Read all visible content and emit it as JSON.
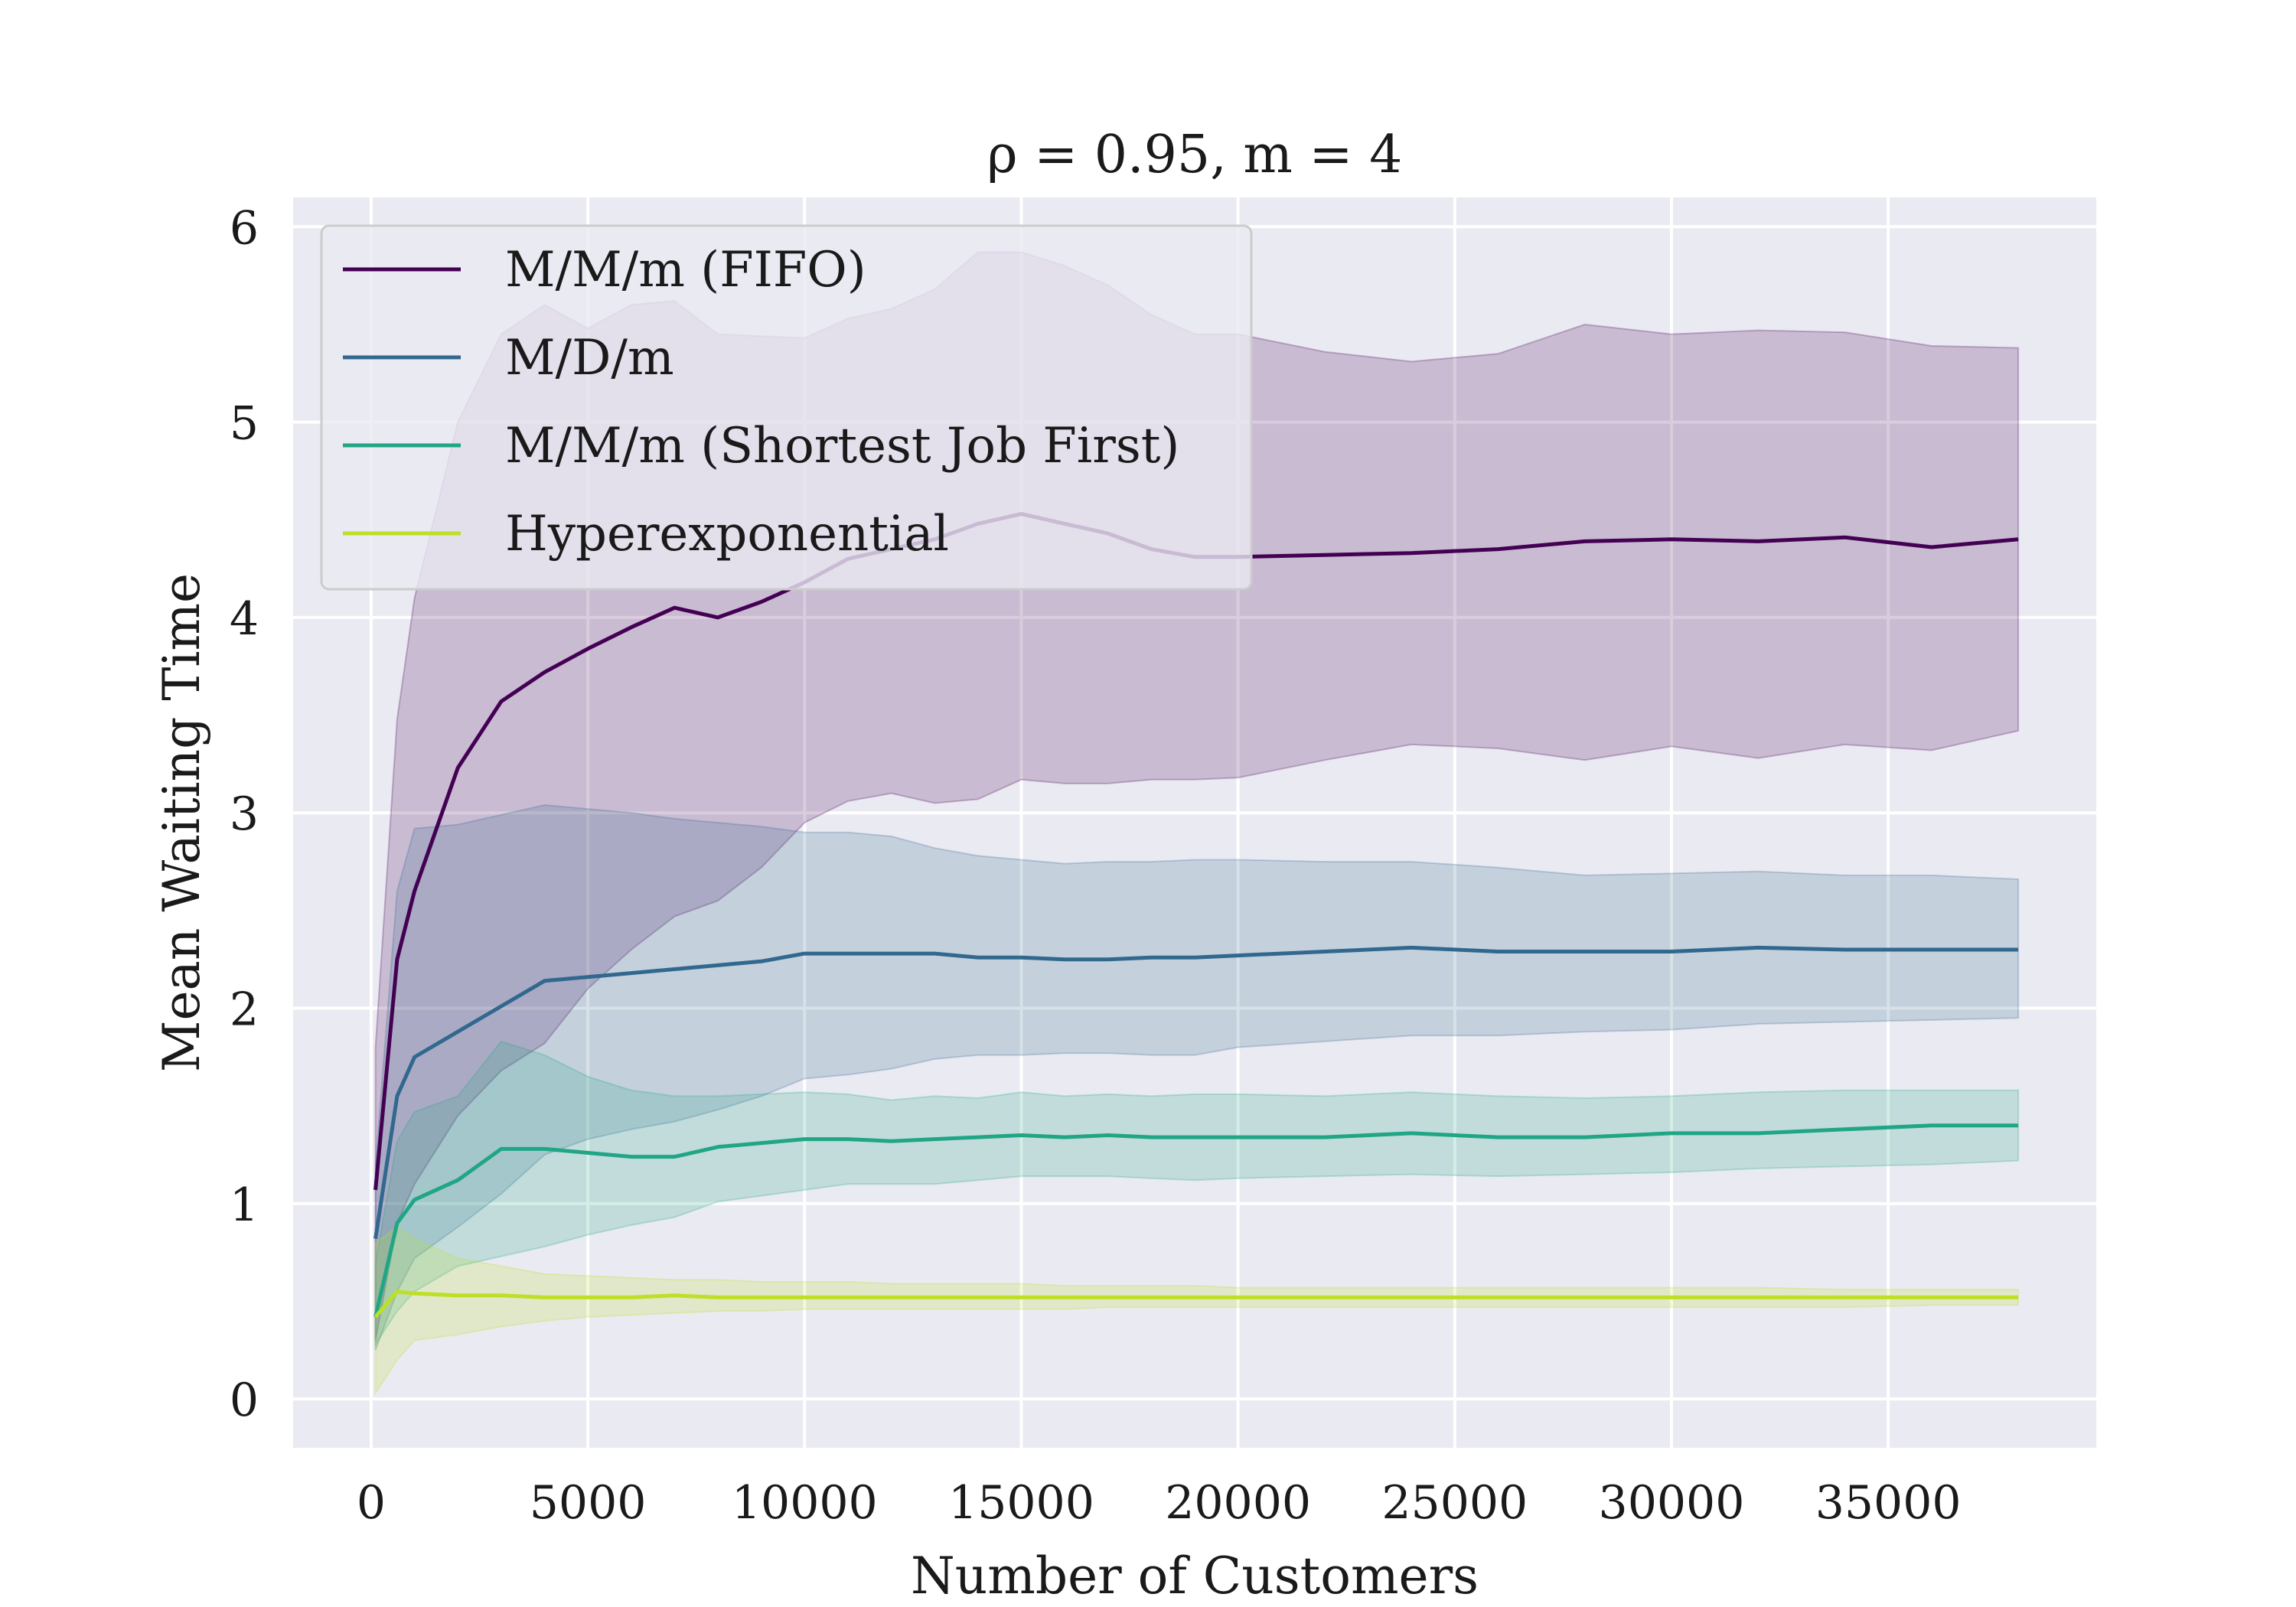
{
  "chart_data": {
    "type": "line",
    "title": "ρ = 0.95, m = 4",
    "xlabel": "Number of Customers",
    "ylabel": "Mean Waiting Time",
    "xlim": [
      -1800,
      39800
    ],
    "ylim": [
      -0.25,
      6.15
    ],
    "xticks": [
      0,
      5000,
      10000,
      15000,
      20000,
      25000,
      30000,
      35000
    ],
    "yticks": [
      0,
      1,
      2,
      3,
      4,
      5,
      6
    ],
    "grid": true,
    "legend_position": "top-left",
    "background_color": "#eaeaf2",
    "x": [
      100,
      600,
      1000,
      2000,
      3000,
      4000,
      5000,
      6000,
      7000,
      8000,
      9000,
      10000,
      11000,
      12000,
      13000,
      14000,
      15000,
      16000,
      17000,
      18000,
      19000,
      20000,
      22000,
      24000,
      26000,
      28000,
      30000,
      32000,
      34000,
      36000,
      38000
    ],
    "series": [
      {
        "name": "M/M/m (FIFO)",
        "color": "#440154",
        "values": [
          1.07,
          2.25,
          2.6,
          3.23,
          3.57,
          3.72,
          3.84,
          3.95,
          4.05,
          4.0,
          4.08,
          4.18,
          4.3,
          4.35,
          4.4,
          4.48,
          4.53,
          4.48,
          4.43,
          4.35,
          4.31,
          4.31,
          4.32,
          4.33,
          4.35,
          4.39,
          4.4,
          4.39,
          4.41,
          4.36,
          4.4
        ],
        "lower": [
          0.3,
          0.9,
          1.1,
          1.45,
          1.68,
          1.82,
          2.1,
          2.3,
          2.47,
          2.55,
          2.72,
          2.95,
          3.06,
          3.1,
          3.05,
          3.07,
          3.17,
          3.15,
          3.15,
          3.17,
          3.17,
          3.18,
          3.27,
          3.35,
          3.33,
          3.27,
          3.34,
          3.28,
          3.35,
          3.32,
          3.42
        ],
        "upper": [
          1.8,
          3.48,
          4.1,
          5.0,
          5.45,
          5.6,
          5.48,
          5.6,
          5.62,
          5.45,
          5.44,
          5.43,
          5.53,
          5.58,
          5.68,
          5.87,
          5.87,
          5.8,
          5.7,
          5.55,
          5.45,
          5.45,
          5.36,
          5.31,
          5.35,
          5.5,
          5.45,
          5.47,
          5.46,
          5.39,
          5.38
        ]
      },
      {
        "name": "M/D/m",
        "color": "#31688e",
        "values": [
          0.82,
          1.55,
          1.75,
          1.88,
          2.01,
          2.14,
          2.16,
          2.18,
          2.2,
          2.22,
          2.24,
          2.28,
          2.28,
          2.28,
          2.28,
          2.26,
          2.26,
          2.25,
          2.25,
          2.26,
          2.26,
          2.27,
          2.29,
          2.31,
          2.29,
          2.29,
          2.29,
          2.31,
          2.3,
          2.3,
          2.3
        ],
        "lower": [
          0.25,
          0.55,
          0.72,
          0.88,
          1.05,
          1.25,
          1.33,
          1.38,
          1.42,
          1.48,
          1.55,
          1.64,
          1.66,
          1.69,
          1.74,
          1.76,
          1.76,
          1.77,
          1.77,
          1.76,
          1.76,
          1.8,
          1.83,
          1.86,
          1.86,
          1.88,
          1.89,
          1.92,
          1.93,
          1.94,
          1.95
        ],
        "upper": [
          1.2,
          2.6,
          2.92,
          2.94,
          2.99,
          3.04,
          3.02,
          3.0,
          2.97,
          2.95,
          2.93,
          2.9,
          2.9,
          2.88,
          2.82,
          2.78,
          2.76,
          2.74,
          2.75,
          2.75,
          2.76,
          2.76,
          2.75,
          2.75,
          2.72,
          2.68,
          2.69,
          2.7,
          2.68,
          2.68,
          2.66
        ]
      },
      {
        "name": "M/M/m (Shortest Job First)",
        "color": "#21a685",
        "values": [
          0.42,
          0.9,
          1.02,
          1.12,
          1.28,
          1.28,
          1.26,
          1.24,
          1.24,
          1.29,
          1.31,
          1.33,
          1.33,
          1.32,
          1.33,
          1.34,
          1.35,
          1.34,
          1.35,
          1.34,
          1.34,
          1.34,
          1.34,
          1.36,
          1.34,
          1.34,
          1.36,
          1.36,
          1.38,
          1.4,
          1.4
        ],
        "lower": [
          0.28,
          0.45,
          0.55,
          0.68,
          0.73,
          0.78,
          0.84,
          0.89,
          0.93,
          1.01,
          1.04,
          1.07,
          1.1,
          1.1,
          1.1,
          1.12,
          1.14,
          1.14,
          1.14,
          1.13,
          1.12,
          1.13,
          1.14,
          1.15,
          1.14,
          1.15,
          1.16,
          1.18,
          1.19,
          1.2,
          1.22
        ],
        "upper": [
          0.7,
          1.32,
          1.47,
          1.55,
          1.83,
          1.76,
          1.65,
          1.58,
          1.55,
          1.55,
          1.56,
          1.57,
          1.56,
          1.53,
          1.55,
          1.54,
          1.57,
          1.55,
          1.56,
          1.55,
          1.56,
          1.56,
          1.55,
          1.57,
          1.55,
          1.54,
          1.55,
          1.57,
          1.58,
          1.58,
          1.58
        ]
      },
      {
        "name": "Hyperexponential",
        "color": "#bddf26",
        "values": [
          0.42,
          0.55,
          0.54,
          0.53,
          0.53,
          0.52,
          0.52,
          0.52,
          0.53,
          0.52,
          0.52,
          0.52,
          0.52,
          0.52,
          0.52,
          0.52,
          0.52,
          0.52,
          0.52,
          0.52,
          0.52,
          0.52,
          0.52,
          0.52,
          0.52,
          0.52,
          0.52,
          0.52,
          0.52,
          0.52,
          0.52
        ],
        "lower": [
          0.03,
          0.2,
          0.3,
          0.33,
          0.37,
          0.4,
          0.42,
          0.43,
          0.44,
          0.45,
          0.45,
          0.46,
          0.46,
          0.46,
          0.46,
          0.46,
          0.46,
          0.46,
          0.47,
          0.47,
          0.47,
          0.47,
          0.47,
          0.47,
          0.47,
          0.47,
          0.47,
          0.47,
          0.47,
          0.48,
          0.48
        ],
        "upper": [
          0.8,
          0.88,
          0.82,
          0.72,
          0.68,
          0.64,
          0.63,
          0.62,
          0.61,
          0.61,
          0.6,
          0.6,
          0.6,
          0.59,
          0.59,
          0.59,
          0.59,
          0.58,
          0.58,
          0.58,
          0.58,
          0.57,
          0.57,
          0.57,
          0.57,
          0.57,
          0.57,
          0.57,
          0.56,
          0.56,
          0.56
        ]
      }
    ]
  }
}
